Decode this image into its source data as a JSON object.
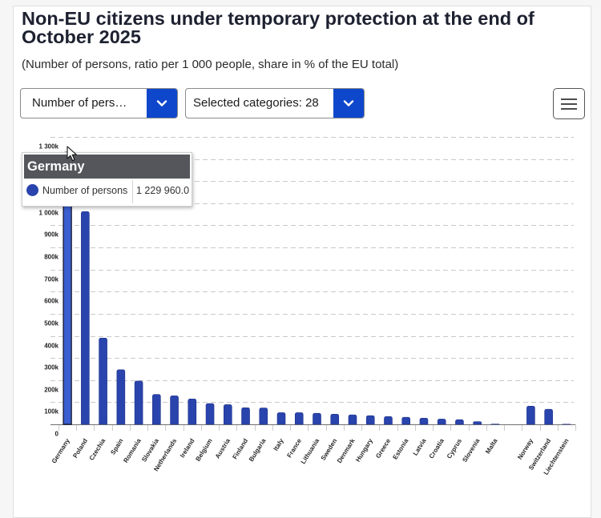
{
  "title": "Non-EU citizens under temporary protection at the end of October 2025",
  "subtitle": "(Number of persons, ratio per 1 000 people, share in % of the EU total)",
  "controls": {
    "indicator_select": {
      "value": "Number of pers…",
      "icon": "chevron-down-icon"
    },
    "categories_select": {
      "value": "Selected categories: 28",
      "icon": "chevron-down-icon"
    },
    "menu_button": {
      "icon": "hamburger-menu-icon"
    }
  },
  "tooltip": {
    "title": "Germany",
    "series_label": "Number of persons",
    "value": "1 229 960.0",
    "marker_icon": "circle-marker-icon"
  },
  "colors": {
    "accent": "#0e47cb",
    "bar": "#2a44ad",
    "bar_hover": "#3b5fd0",
    "tooltip_header": "#54565b",
    "gridline": "#c9c9c9"
  },
  "chart_data": {
    "type": "bar",
    "title": "Non-EU citizens under temporary protection at the end of October 2025",
    "subtitle": "(Number of persons, ratio per 1 000 people, share in % of the EU total)",
    "xlabel": "",
    "ylabel": "",
    "categories": [
      "Germany",
      "Poland",
      "Czechia",
      "Spain",
      "Romania",
      "Slovakia",
      "Netherlands",
      "Ireland",
      "Belgium",
      "Austria",
      "Finland",
      "Bulgaria",
      "Italy",
      "France",
      "Lithuania",
      "Sweden",
      "Denmark",
      "Hungary",
      "Greece",
      "Estonia",
      "Latvia",
      "Croatia",
      "Cyprus",
      "Slovenia",
      "Malta",
      "",
      "Norway",
      "Switzerland",
      "Liechtenstein"
    ],
    "series": [
      {
        "name": "Number of persons",
        "values": [
          1229960,
          962000,
          390000,
          247000,
          196000,
          135000,
          129000,
          115000,
          94000,
          89000,
          75000,
          74000,
          53000,
          53000,
          50000,
          46000,
          43000,
          39000,
          35000,
          32000,
          28000,
          24000,
          21000,
          12000,
          1000,
          null,
          82000,
          68000,
          500
        ]
      }
    ],
    "ylim": [
      0,
      1300000
    ],
    "yticks": [
      0,
      100000,
      200000,
      300000,
      400000,
      500000,
      600000,
      700000,
      800000,
      900000,
      1000000,
      1100000,
      1200000,
      1300000
    ],
    "ytick_labels": [
      "0",
      "100k",
      "200k",
      "300k",
      "400k",
      "500k",
      "600k",
      "700k",
      "800k",
      "900k",
      "1 000k",
      "1 100k",
      "1 200k",
      "1 300k"
    ],
    "grid": true,
    "legend": "none",
    "highlighted_category": "Germany"
  }
}
